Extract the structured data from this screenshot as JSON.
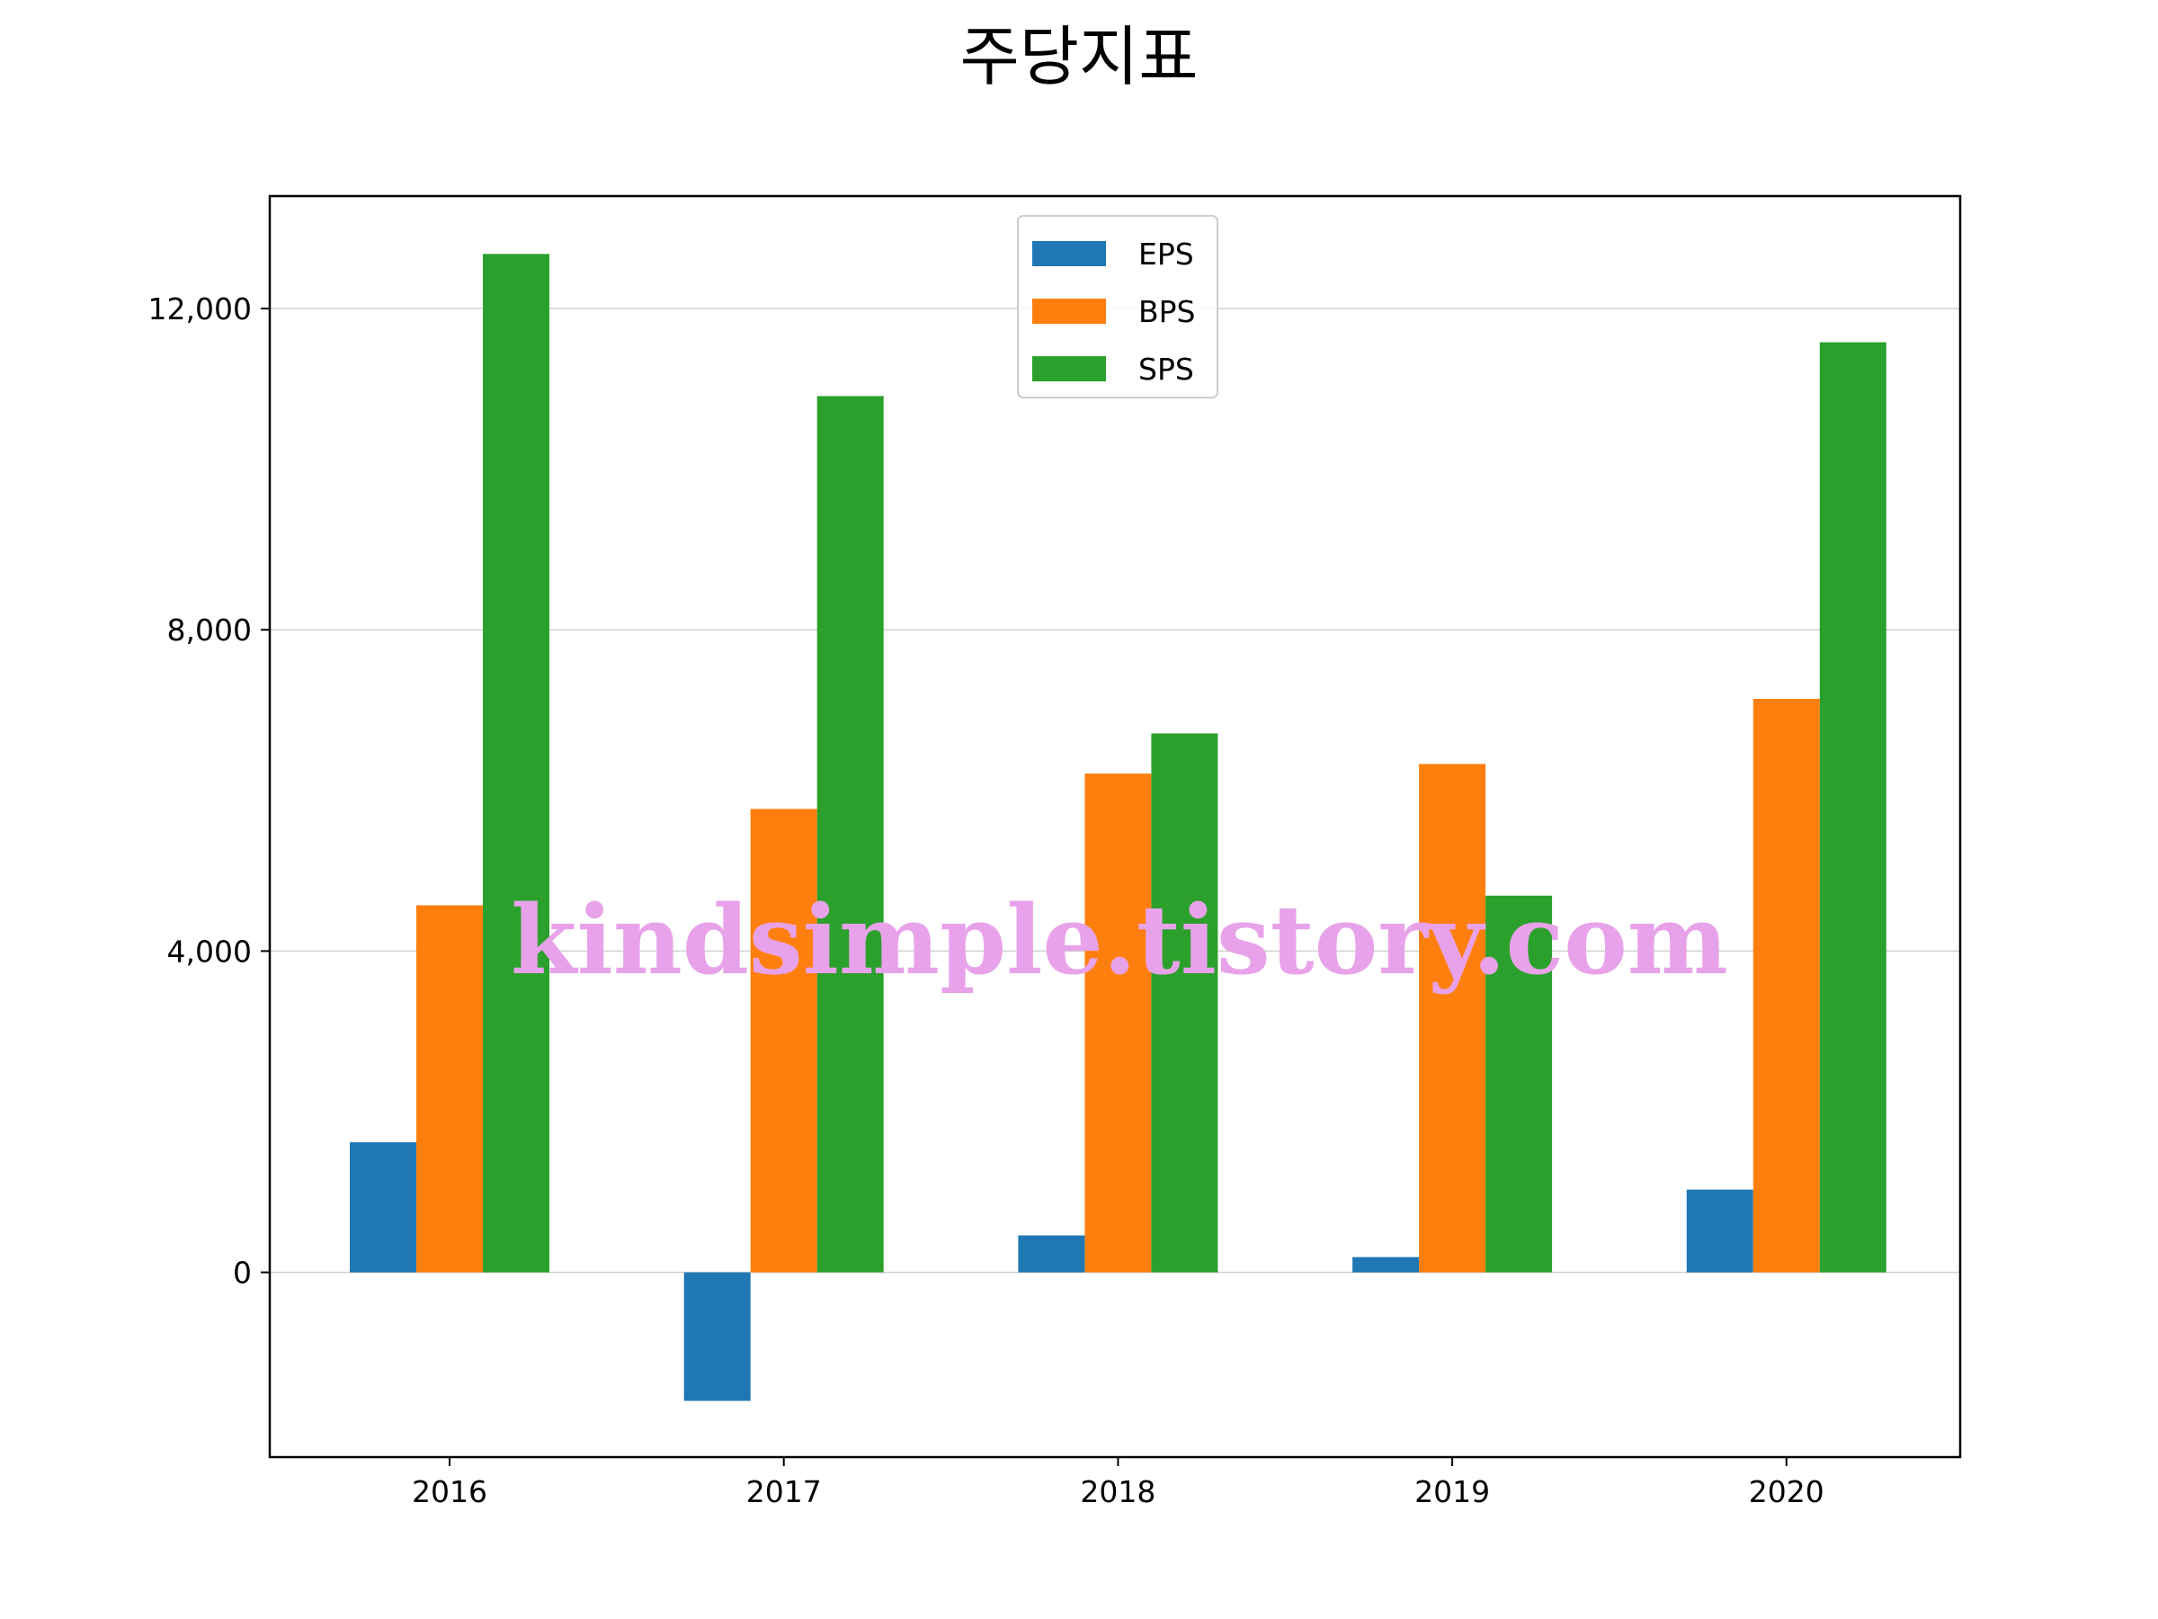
{
  "chart_data": {
    "type": "bar",
    "title": "주당지표",
    "xlabel": "",
    "ylabel": "",
    "categories": [
      "2016",
      "2017",
      "2018",
      "2019",
      "2020"
    ],
    "series": [
      {
        "name": "EPS",
        "color": "#1f77b4",
        "values": [
          1620,
          -1600,
          460,
          190,
          1030
        ]
      },
      {
        "name": "BPS",
        "color": "#ff7f0e",
        "values": [
          4570,
          5770,
          6210,
          6330,
          7140
        ]
      },
      {
        "name": "SPS",
        "color": "#2ca02c",
        "values": [
          12680,
          10910,
          6710,
          4690,
          11580
        ]
      }
    ],
    "ylim": [
      -2300,
      13400
    ],
    "yticks": [
      0,
      4000,
      8000,
      12000
    ],
    "ytick_labels": [
      "0",
      "4,000",
      "8,000",
      "12,000"
    ],
    "grid": "horizontal",
    "legend_position": "top-center",
    "watermark": "kindsimple.tistory.com"
  }
}
